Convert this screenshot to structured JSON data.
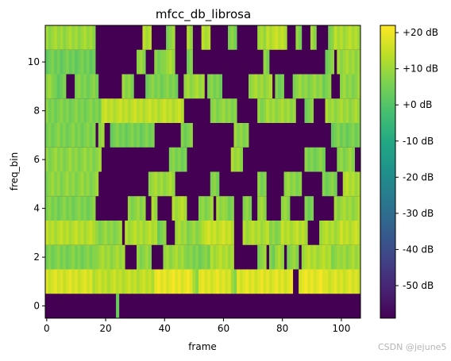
{
  "chart_data": {
    "type": "heatmap",
    "title": "mfcc_db_librosa",
    "xlabel": "frame",
    "ylabel": "freq_bin",
    "x_range": [
      -0.5,
      106.5
    ],
    "y_range": [
      -0.5,
      11.5
    ],
    "x_ticks": [
      0,
      20,
      40,
      60,
      80,
      100
    ],
    "y_ticks": [
      0,
      2,
      4,
      6,
      8,
      10
    ],
    "colorbar": {
      "vmin": -59,
      "vmax": 22,
      "ticks": [
        20,
        10,
        0,
        -10,
        -20,
        -30,
        -40,
        -50
      ],
      "tick_labels": [
        "+20 dB",
        "+10 dB",
        "+0 dB",
        "-10 dB",
        "-20 dB",
        "-30 dB",
        "-40 dB",
        "-50 dB"
      ],
      "colormap": "viridis"
    },
    "grid": false,
    "low_value_db": -59,
    "segments_note": "each row lists [start_frame, end_frame, dB] runs of roughly constant value; frames not covered are at low_value_db",
    "rows": [
      {
        "bin": 0,
        "runs": [
          [
            24,
            24,
            2
          ]
        ]
      },
      {
        "bin": 1,
        "runs": [
          [
            0,
            15,
            17
          ],
          [
            16,
            36,
            14
          ],
          [
            37,
            49,
            19
          ],
          [
            50,
            51,
            10
          ],
          [
            52,
            62,
            18
          ],
          [
            63,
            64,
            8
          ],
          [
            65,
            83,
            18
          ],
          [
            86,
            94,
            19
          ],
          [
            95,
            106,
            17
          ]
        ]
      },
      {
        "bin": 2,
        "runs": [
          [
            0,
            16,
            6
          ],
          [
            17,
            26,
            10
          ],
          [
            31,
            35,
            8
          ],
          [
            40,
            47,
            10
          ],
          [
            48,
            55,
            6
          ],
          [
            56,
            63,
            12
          ],
          [
            72,
            74,
            8
          ],
          [
            76,
            77,
            6
          ],
          [
            78,
            80,
            10
          ],
          [
            82,
            85,
            8
          ],
          [
            87,
            96,
            12
          ],
          [
            97,
            99,
            8
          ],
          [
            100,
            106,
            10
          ]
        ]
      },
      {
        "bin": 3,
        "runs": [
          [
            0,
            16,
            13
          ],
          [
            17,
            25,
            8
          ],
          [
            27,
            37,
            12
          ],
          [
            38,
            40,
            6
          ],
          [
            44,
            47,
            10
          ],
          [
            48,
            52,
            8
          ],
          [
            53,
            63,
            15
          ],
          [
            67,
            75,
            12
          ],
          [
            76,
            79,
            8
          ],
          [
            80,
            88,
            13
          ],
          [
            93,
            99,
            12
          ],
          [
            100,
            106,
            14
          ]
        ]
      },
      {
        "bin": 4,
        "runs": [
          [
            0,
            16,
            6
          ],
          [
            28,
            33,
            8
          ],
          [
            36,
            37,
            10
          ],
          [
            43,
            47,
            12
          ],
          [
            52,
            56,
            8
          ],
          [
            58,
            60,
            10
          ],
          [
            61,
            63,
            6
          ],
          [
            67,
            69,
            8
          ],
          [
            72,
            74,
            10
          ],
          [
            80,
            82,
            8
          ],
          [
            88,
            90,
            6
          ],
          [
            98,
            106,
            10
          ]
        ]
      },
      {
        "bin": 5,
        "runs": [
          [
            0,
            17,
            8
          ],
          [
            35,
            43,
            10
          ],
          [
            56,
            58,
            6
          ],
          [
            72,
            74,
            6
          ],
          [
            81,
            86,
            8
          ],
          [
            94,
            98,
            6
          ],
          [
            101,
            106,
            12
          ]
        ]
      },
      {
        "bin": 6,
        "runs": [
          [
            0,
            18,
            8
          ],
          [
            42,
            47,
            6
          ],
          [
            63,
            66,
            10
          ],
          [
            88,
            94,
            6
          ],
          [
            99,
            104,
            8
          ]
        ]
      },
      {
        "bin": 7,
        "runs": [
          [
            0,
            16,
            6
          ],
          [
            18,
            19,
            8
          ],
          [
            22,
            36,
            5
          ],
          [
            46,
            49,
            6
          ],
          [
            64,
            68,
            8
          ],
          [
            97,
            106,
            5
          ]
        ]
      },
      {
        "bin": 8,
        "runs": [
          [
            0,
            18,
            6
          ],
          [
            19,
            46,
            14
          ],
          [
            56,
            64,
            8
          ],
          [
            72,
            74,
            8
          ],
          [
            75,
            84,
            10
          ],
          [
            88,
            90,
            6
          ],
          [
            95,
            106,
            10
          ]
        ]
      },
      {
        "bin": 9,
        "runs": [
          [
            0,
            2,
            8
          ],
          [
            3,
            6,
            4
          ],
          [
            10,
            17,
            6
          ],
          [
            26,
            29,
            8
          ],
          [
            34,
            44,
            6
          ],
          [
            47,
            53,
            10
          ],
          [
            55,
            59,
            6
          ],
          [
            69,
            76,
            10
          ],
          [
            78,
            80,
            6
          ],
          [
            84,
            93,
            8
          ],
          [
            94,
            96,
            6
          ],
          [
            100,
            106,
            8
          ]
        ]
      },
      {
        "bin": 10,
        "runs": [
          [
            0,
            16,
            4
          ],
          [
            31,
            33,
            8
          ],
          [
            37,
            39,
            6
          ],
          [
            40,
            43,
            10
          ],
          [
            48,
            49,
            6
          ],
          [
            74,
            75,
            8
          ],
          [
            95,
            97,
            6
          ],
          [
            99,
            106,
            10
          ]
        ]
      },
      {
        "bin": 11,
        "runs": [
          [
            0,
            16,
            10
          ],
          [
            33,
            35,
            12
          ],
          [
            41,
            43,
            8
          ],
          [
            48,
            49,
            10
          ],
          [
            53,
            55,
            12
          ],
          [
            62,
            64,
            6
          ],
          [
            72,
            74,
            10
          ],
          [
            75,
            81,
            14
          ],
          [
            85,
            86,
            8
          ],
          [
            90,
            91,
            10
          ],
          [
            96,
            97,
            8
          ],
          [
            98,
            106,
            12
          ]
        ]
      }
    ]
  },
  "watermark": "CSDN @jejune5"
}
